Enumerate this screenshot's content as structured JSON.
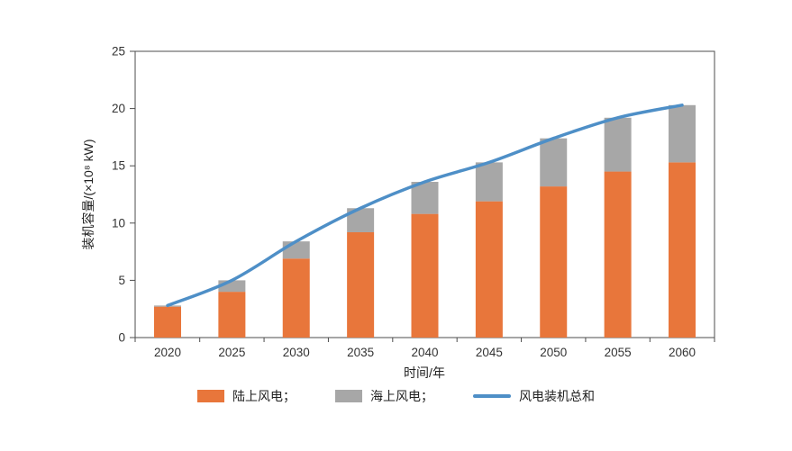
{
  "chart_data": {
    "type": "bar",
    "subtype": "stacked-bars-with-total-line",
    "title": "",
    "categories": [
      "2020",
      "2025",
      "2030",
      "2035",
      "2040",
      "2045",
      "2050",
      "2055",
      "2060"
    ],
    "series": [
      {
        "name": "陆上风电",
        "kind": "bar",
        "color": "#E8763B",
        "values": [
          2.7,
          4.0,
          6.9,
          9.2,
          10.8,
          11.9,
          13.2,
          14.5,
          15.3
        ]
      },
      {
        "name": "海上风电",
        "kind": "bar",
        "color": "#A7A7A7",
        "values": [
          0.1,
          1.0,
          1.5,
          2.1,
          2.8,
          3.4,
          4.2,
          4.7,
          5.0
        ]
      },
      {
        "name": "风电装机总和",
        "kind": "line",
        "color": "#4E8FC7",
        "values": [
          2.8,
          5.0,
          8.4,
          11.3,
          13.6,
          15.3,
          17.4,
          19.2,
          20.3
        ]
      }
    ],
    "xlabel": "时间/年",
    "ylabel": "装机容量/(×10⁸ kW)",
    "ylim": [
      0,
      25
    ],
    "yticks": [
      0,
      5,
      10,
      15,
      20,
      25
    ],
    "grid": false,
    "legend_position": "bottom",
    "legend": {
      "items": [
        {
          "label": "陆上风电；",
          "swatch": "bar",
          "color": "#E8763B"
        },
        {
          "label": "海上风电；",
          "swatch": "bar",
          "color": "#A7A7A7"
        },
        {
          "label": "风电装机总和",
          "swatch": "line",
          "color": "#4E8FC7"
        }
      ]
    },
    "axis_color": "#4d4d4d"
  }
}
